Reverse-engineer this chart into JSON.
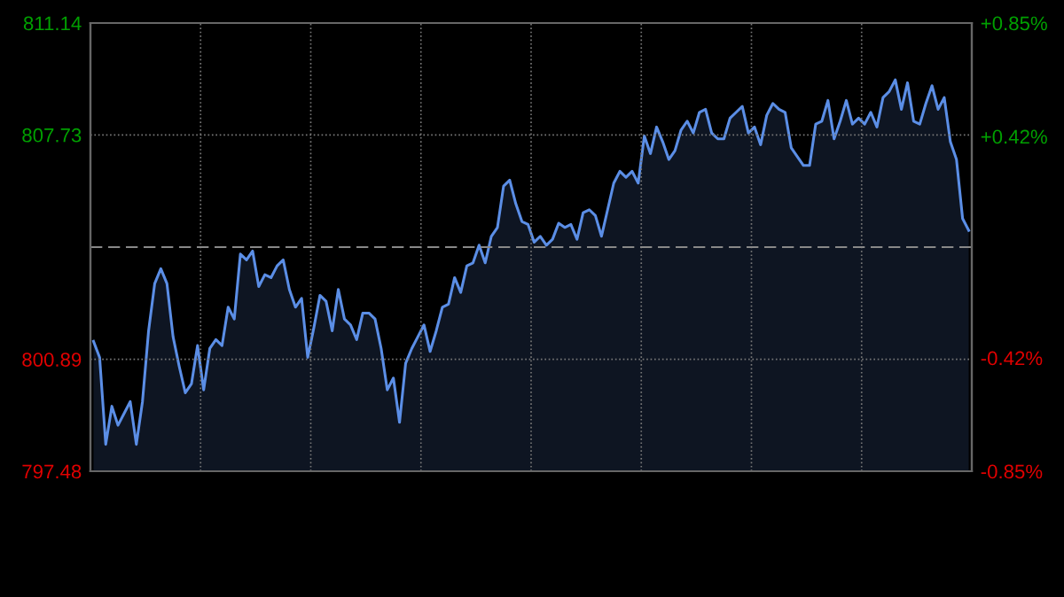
{
  "chart_data": {
    "type": "area",
    "grid": true,
    "tick_labels": "y",
    "categories": [
      null,
      null,
      null,
      null,
      null,
      null,
      null,
      null,
      null,
      null,
      null,
      null,
      null,
      null,
      null,
      null,
      null,
      null,
      null,
      null,
      null,
      null,
      null,
      null,
      null,
      null,
      null,
      null,
      null,
      null,
      null,
      null,
      null,
      null,
      null,
      null,
      null,
      null,
      null,
      null,
      null,
      null,
      null,
      null,
      null,
      null,
      null,
      null,
      null,
      null,
      null,
      null,
      null,
      null,
      null,
      null,
      null,
      null,
      null,
      null,
      null,
      null,
      null,
      null,
      null,
      null,
      null,
      null,
      null,
      null,
      null,
      null,
      null,
      null,
      null,
      null,
      null,
      null,
      null,
      null,
      null,
      null,
      null,
      null,
      null,
      null,
      null,
      null,
      null,
      null,
      null,
      null,
      null,
      null,
      null,
      null,
      null,
      null,
      null,
      null,
      null,
      null,
      null,
      null,
      null,
      null,
      null,
      null,
      null,
      null,
      null,
      null,
      null,
      null,
      null,
      null,
      null,
      null,
      null,
      null,
      null,
      null,
      null,
      null,
      null,
      null,
      null,
      null,
      null,
      null,
      null,
      null,
      null,
      null,
      null,
      null,
      null,
      null,
      null,
      null,
      null,
      null,
      null,
      null
    ],
    "series": [
      {
        "color": "#5b8ee6",
        "values": [
          801.44,
          800.95,
          798.3,
          799.46,
          798.88,
          799.24,
          799.6,
          798.3,
          799.6,
          801.76,
          803.2,
          803.65,
          803.2,
          801.58,
          800.68,
          799.87,
          800.14,
          801.31,
          799.96,
          801.22,
          801.49,
          801.31,
          802.48,
          802.12,
          804.1,
          803.92,
          804.19,
          803.11,
          803.47,
          803.38,
          803.74,
          803.92,
          803.02,
          802.48,
          802.75,
          800.95,
          801.85,
          802.84,
          802.66,
          801.76,
          803.02,
          802.12,
          801.94,
          801.49,
          802.3,
          802.3,
          802.12,
          801.22,
          799.96,
          800.32,
          798.97,
          800.77,
          801.22,
          801.58,
          801.94,
          801.13,
          801.76,
          802.48,
          802.57,
          803.38,
          802.93,
          803.74,
          803.83,
          804.37,
          803.83,
          804.64,
          804.91,
          806.17,
          806.35,
          805.63,
          805.09,
          805.0,
          804.46,
          804.64,
          804.37,
          804.55,
          805.04,
          804.91,
          805.0,
          804.55,
          805.36,
          805.45,
          805.27,
          804.64,
          805.45,
          806.26,
          806.62,
          806.44,
          806.62,
          806.26,
          807.7,
          807.16,
          807.97,
          807.52,
          806.98,
          807.25,
          807.88,
          808.15,
          807.79,
          808.42,
          808.51,
          807.79,
          807.61,
          807.61,
          808.24,
          808.42,
          808.6,
          807.79,
          807.97,
          807.43,
          808.33,
          808.69,
          808.51,
          808.42,
          807.34,
          807.07,
          806.8,
          806.8,
          808.06,
          808.15,
          808.78,
          807.61,
          808.15,
          808.78,
          808.06,
          808.24,
          808.06,
          808.42,
          807.97,
          808.87,
          809.05,
          809.41,
          808.51,
          809.32,
          808.15,
          808.06,
          808.69,
          809.23,
          808.51,
          808.87,
          807.52,
          806.98,
          805.18,
          804.82
        ]
      }
    ],
    "ylim": [
      797.48,
      811.14
    ],
    "yticks": [
      811.14,
      807.73,
      {
        "value": 804.31,
        "label": null
      },
      800.89,
      797.48
    ],
    "y2lim": [
      -0.85,
      0.85
    ],
    "y2ticks": [
      {
        "value": 0.85,
        "label": "+0.85%"
      },
      {
        "value": 0.42,
        "label": "+0.42%"
      },
      {
        "value": -0.42,
        "label": "-0.42%"
      },
      {
        "value": -0.85,
        "label": "-0.85%"
      }
    ],
    "ref_lines": [
      {
        "axis": "y",
        "value": 804.31,
        "color": "#888888",
        "line_style": "dashed"
      }
    ]
  }
}
